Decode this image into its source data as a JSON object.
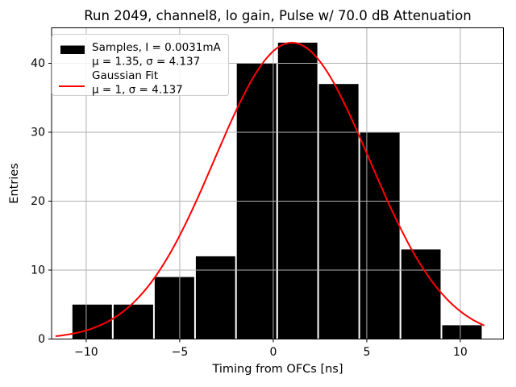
{
  "chart_data": {
    "type": "bar",
    "subtype": "histogram_with_gaussian_fit",
    "title": "Run 2049, channel8, lo gain, Pulse w/ 70.0 dB Attenuation",
    "xlabel": "Timing from OFCs [ns]",
    "ylabel": "Entries",
    "bin_edges": [
      -10.78,
      -8.58,
      -6.38,
      -4.18,
      -1.99,
      0.21,
      2.4,
      4.6,
      6.8,
      8.99,
      11.19
    ],
    "counts": [
      5,
      5,
      9,
      12,
      40,
      43,
      37,
      30,
      13,
      2
    ],
    "gaussian_fit": {
      "amplitude": 43,
      "mu": 1,
      "sigma": 4.137,
      "x_start": -11.6,
      "x_end": 11.25
    },
    "xlim": [
      -11.85,
      12.31
    ],
    "ylim": [
      0,
      45.15
    ],
    "x_tick_values": [
      -10,
      -5,
      0,
      5,
      10
    ],
    "x_tick_labels": [
      "−10",
      "−5",
      "0",
      "5",
      "10"
    ],
    "y_tick_values": [
      0,
      10,
      20,
      30,
      40
    ],
    "y_tick_labels": [
      "0",
      "10",
      "20",
      "30",
      "40"
    ],
    "grid": true,
    "legend": {
      "position": "upper-left",
      "entries": [
        {
          "swatch": "black-patch",
          "line1": "Samples, I = 0.0031mA",
          "line2": "μ = 1.35, σ = 4.137"
        },
        {
          "swatch": "red-line",
          "line1": "Gaussian Fit",
          "line2": "μ = 1, σ = 4.137"
        }
      ]
    },
    "colors": {
      "bars": "#000000",
      "fit_line": "#ff0000",
      "grid": "#b0b0b0",
      "legend_border": "#cccccc",
      "spines": "#000000"
    }
  }
}
